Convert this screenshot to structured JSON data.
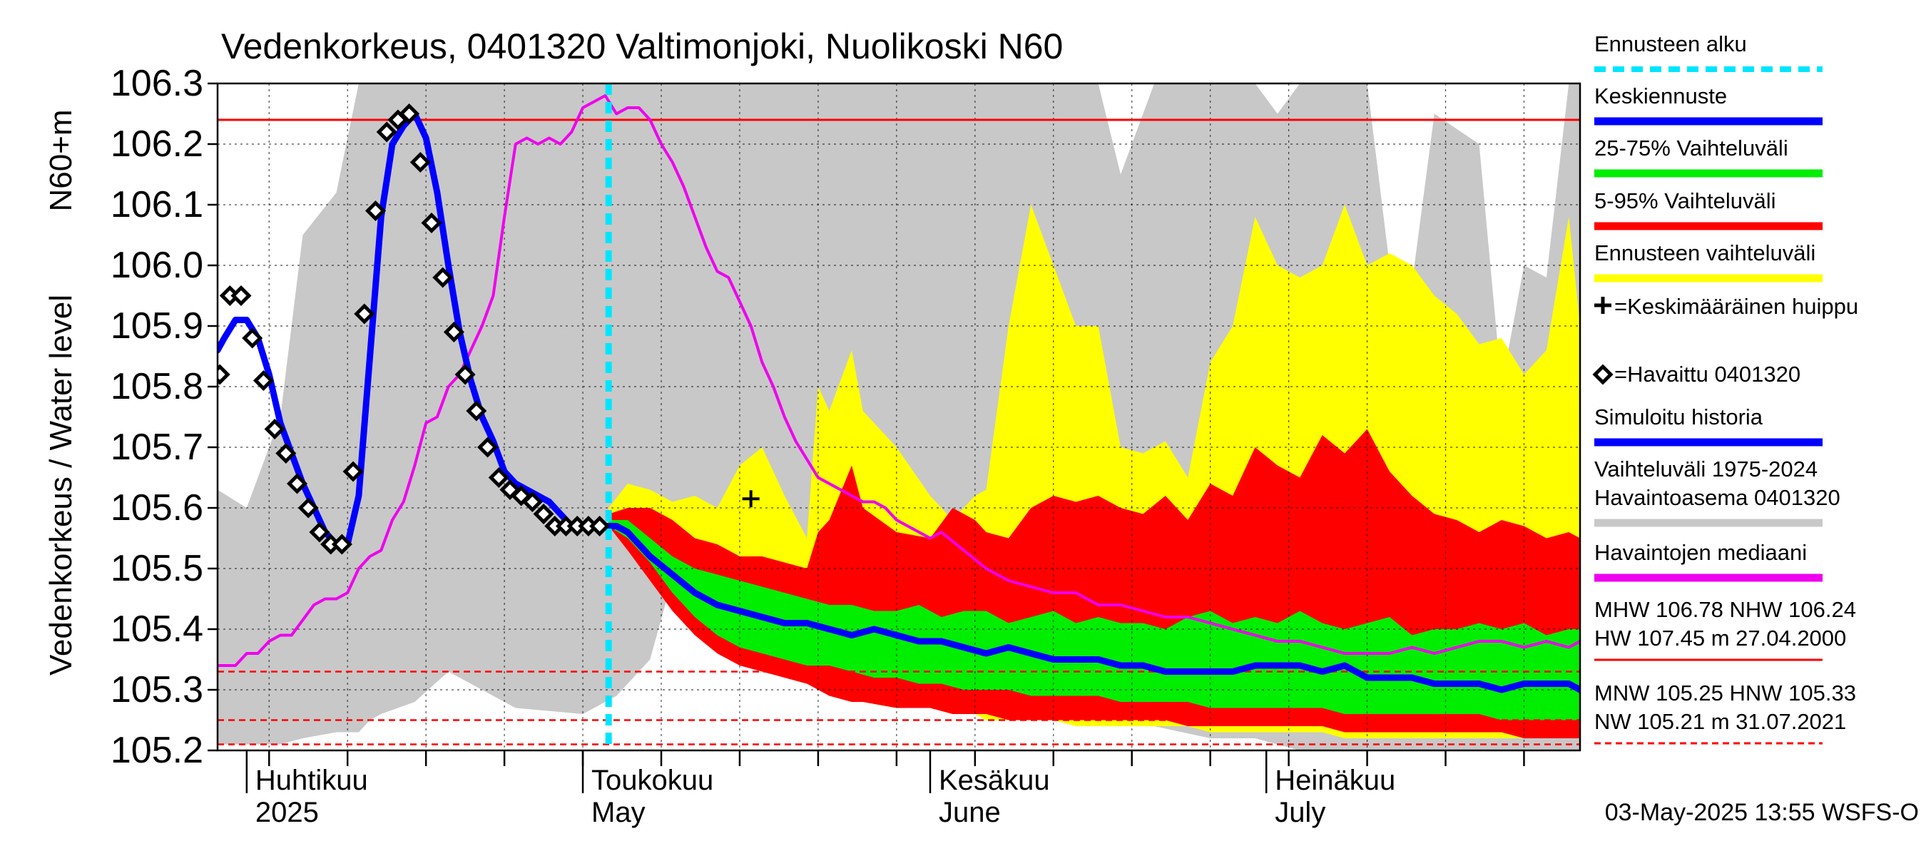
{
  "chart_data": {
    "type": "area",
    "title": "Vedenkorkeus, 0401320 Valtimonjoki, Nuolikoski N60",
    "ylabel": "Vedenkorkeus / Water level",
    "yunit": "N60+m",
    "ylim": [
      105.2,
      106.3
    ],
    "yticks": [
      "105.2",
      "105.3",
      "105.4",
      "105.5",
      "105.6",
      "105.7",
      "105.8",
      "105.9",
      "106.0",
      "106.1",
      "106.2",
      "106.3"
    ],
    "xlim_days": [
      -32.6,
      89.0
    ],
    "x_reference": "2025-05-01",
    "month_labels": [
      {
        "day": -30,
        "fi": "Huhtikuu",
        "en": "2025"
      },
      {
        "day": 0,
        "fi": "Toukokuu",
        "en": "May"
      },
      {
        "day": 31,
        "fi": "Kesäkuu",
        "en": "June"
      },
      {
        "day": 61,
        "fi": "Heinäkuu",
        "en": "July"
      }
    ],
    "forecast_start_day": 2.3,
    "reference_lines": [
      {
        "name": "NHW",
        "value": 106.24,
        "color": "#ff0000",
        "style": "solid"
      },
      {
        "name": "HNW",
        "value": 105.33,
        "color": "#ff0000",
        "style": "dashed"
      },
      {
        "name": "MNW",
        "value": 105.25,
        "color": "#ff0000",
        "style": "dashed"
      },
      {
        "name": "NW",
        "value": 105.21,
        "color": "#ff0000",
        "style": "dashed"
      }
    ],
    "mean_peak": {
      "day": 15,
      "value": 105.615
    },
    "legend": [
      {
        "label": "Ennusteen alku",
        "color": "#00e5ff",
        "style": "dotted"
      },
      {
        "label": "Keskiennuste",
        "color": "#0000ff",
        "style": "line"
      },
      {
        "label": "25-75% Vaihteluväli",
        "color": "#00ee00",
        "style": "line"
      },
      {
        "label": "5-95% Vaihteluväli",
        "color": "#ff0000",
        "style": "line"
      },
      {
        "label": "Ennusteen vaihteluväli",
        "color": "#ffff00",
        "style": "line"
      },
      {
        "label": "=Keskimääräinen huippu",
        "color": "#000000",
        "style": "plus"
      },
      {
        "label": "=Havaittu 0401320",
        "color": "#000000",
        "style": "diamond"
      },
      {
        "label": "Simuloitu historia",
        "color": "#0000ff",
        "style": "line"
      },
      {
        "label": "Vaihteluväli 1975-2024\n Havaintoasema 0401320",
        "color": "#c8c8c8",
        "style": "line"
      },
      {
        "label": "Havaintojen mediaani",
        "color": "#ee00ee",
        "style": "line"
      }
    ],
    "stats_top": "MHW 106.78 NHW 106.24\nHW 107.45 m 27.04.2000",
    "stats_bottom": "MNW 105.25 HNW 105.33\nNW 105.21 m 31.07.2021",
    "timestamp": "03-May-2025 13:55 WSFS-O",
    "series": [
      {
        "name": "Vaihteluväli 1975-2024 Havaintoasema 0401320",
        "kind": "band",
        "color": "#c8c8c8",
        "x": [
          -32.6,
          -30,
          -27,
          -25,
          -22,
          -20,
          -19,
          -18,
          -15,
          -12,
          -6,
          0,
          3,
          6,
          9,
          12,
          15,
          18,
          20,
          24,
          28,
          31,
          34,
          37,
          40,
          44,
          46,
          48,
          51,
          56,
          60,
          62,
          64,
          66,
          70,
          72,
          74,
          76,
          80,
          82,
          84,
          86,
          88,
          89
        ],
        "upper": [
          105.63,
          105.6,
          105.75,
          106.05,
          106.12,
          106.3,
          106.3,
          106.3,
          106.3,
          106.3,
          106.3,
          106.3,
          106.3,
          106.3,
          106.3,
          106.3,
          106.3,
          106.3,
          106.3,
          106.3,
          106.3,
          106.3,
          106.3,
          106.3,
          106.3,
          106.3,
          106.3,
          106.15,
          106.3,
          106.3,
          106.3,
          106.25,
          106.3,
          106.3,
          106.3,
          106.0,
          105.97,
          106.25,
          106.2,
          105.8,
          106.0,
          105.98,
          106.3,
          106.3
        ],
        "lower": [
          105.21,
          105.21,
          105.21,
          105.22,
          105.23,
          105.23,
          105.25,
          105.26,
          105.28,
          105.33,
          105.27,
          105.26,
          105.29,
          105.35,
          105.55,
          105.55,
          105.54,
          105.5,
          105.47,
          105.44,
          105.41,
          105.36,
          105.33,
          105.32,
          105.3,
          105.27,
          105.25,
          105.27,
          105.24,
          105.22,
          105.22,
          105.21,
          105.2,
          105.2,
          105.2,
          105.2,
          105.2,
          105.2,
          105.2,
          105.2,
          105.2,
          105.2,
          105.2,
          105.2
        ]
      },
      {
        "name": "Ennusteen vaihteluväli",
        "kind": "band",
        "color": "#ffff00",
        "x": [
          2.3,
          4,
          6,
          8,
          10,
          12,
          14,
          16,
          18,
          20,
          21,
          22,
          24,
          25,
          28,
          31,
          33,
          35,
          36,
          38,
          40,
          42,
          44,
          46,
          48,
          50,
          52,
          54,
          56,
          58,
          60,
          62,
          64,
          66,
          68,
          70,
          72,
          74,
          76,
          78,
          80,
          82,
          84,
          86,
          88,
          89
        ],
        "upper": [
          105.6,
          105.64,
          105.63,
          105.61,
          105.62,
          105.6,
          105.67,
          105.7,
          105.62,
          105.55,
          105.8,
          105.76,
          105.86,
          105.76,
          105.7,
          105.62,
          105.58,
          105.62,
          105.63,
          105.9,
          106.1,
          106.0,
          105.9,
          105.9,
          105.7,
          105.69,
          105.71,
          105.65,
          105.84,
          105.9,
          106.08,
          106.0,
          105.98,
          106.0,
          106.1,
          106.0,
          106.02,
          106.0,
          105.95,
          105.92,
          105.87,
          105.88,
          105.82,
          105.86,
          106.08,
          105.9
        ],
        "lower": [
          105.57,
          105.55,
          105.49,
          105.44,
          105.4,
          105.37,
          105.35,
          105.34,
          105.33,
          105.32,
          105.31,
          105.3,
          105.29,
          105.28,
          105.27,
          105.27,
          105.26,
          105.26,
          105.25,
          105.25,
          105.25,
          105.25,
          105.24,
          105.24,
          105.24,
          105.24,
          105.24,
          105.24,
          105.23,
          105.23,
          105.23,
          105.23,
          105.23,
          105.23,
          105.22,
          105.22,
          105.22,
          105.22,
          105.22,
          105.22,
          105.22,
          105.22,
          105.22,
          105.22,
          105.22,
          105.22
        ]
      },
      {
        "name": "5-95% Vaihteluväli",
        "kind": "band",
        "color": "#ff0000",
        "x": [
          2.3,
          4,
          6,
          8,
          10,
          12,
          14,
          16,
          18,
          20,
          21,
          22,
          24,
          25,
          28,
          31,
          33,
          35,
          36,
          38,
          40,
          42,
          44,
          46,
          48,
          50,
          52,
          54,
          56,
          58,
          60,
          62,
          64,
          66,
          68,
          70,
          72,
          74,
          76,
          78,
          80,
          82,
          84,
          86,
          88,
          89
        ],
        "upper": [
          105.59,
          105.6,
          105.6,
          105.58,
          105.55,
          105.54,
          105.52,
          105.52,
          105.51,
          105.5,
          105.56,
          105.58,
          105.67,
          105.6,
          105.56,
          105.55,
          105.6,
          105.58,
          105.56,
          105.55,
          105.6,
          105.62,
          105.61,
          105.62,
          105.6,
          105.59,
          105.62,
          105.58,
          105.64,
          105.62,
          105.7,
          105.67,
          105.65,
          105.72,
          105.69,
          105.73,
          105.66,
          105.62,
          105.59,
          105.58,
          105.56,
          105.58,
          105.57,
          105.55,
          105.56,
          105.55
        ],
        "lower": [
          105.57,
          105.53,
          105.48,
          105.43,
          105.39,
          105.36,
          105.34,
          105.33,
          105.32,
          105.31,
          105.3,
          105.29,
          105.28,
          105.28,
          105.27,
          105.27,
          105.26,
          105.26,
          105.26,
          105.25,
          105.25,
          105.25,
          105.25,
          105.25,
          105.25,
          105.25,
          105.25,
          105.24,
          105.24,
          105.24,
          105.24,
          105.24,
          105.24,
          105.24,
          105.23,
          105.23,
          105.23,
          105.23,
          105.23,
          105.23,
          105.23,
          105.23,
          105.22,
          105.22,
          105.22,
          105.22
        ]
      },
      {
        "name": "25-75% Vaihteluväli",
        "kind": "band",
        "color": "#00ee00",
        "x": [
          2.3,
          4,
          6,
          8,
          10,
          12,
          14,
          16,
          18,
          20,
          22,
          24,
          26,
          28,
          30,
          32,
          34,
          36,
          38,
          40,
          42,
          44,
          46,
          48,
          50,
          52,
          54,
          56,
          58,
          60,
          62,
          64,
          66,
          68,
          70,
          72,
          74,
          76,
          78,
          80,
          82,
          84,
          86,
          88,
          89
        ],
        "upper": [
          105.58,
          105.58,
          105.55,
          105.52,
          105.5,
          105.49,
          105.48,
          105.47,
          105.46,
          105.45,
          105.44,
          105.44,
          105.43,
          105.43,
          105.44,
          105.42,
          105.43,
          105.43,
          105.41,
          105.42,
          105.43,
          105.41,
          105.42,
          105.41,
          105.41,
          105.4,
          105.42,
          105.43,
          105.41,
          105.42,
          105.41,
          105.43,
          105.41,
          105.4,
          105.41,
          105.42,
          105.39,
          105.4,
          105.4,
          105.41,
          105.4,
          105.41,
          105.39,
          105.4,
          105.4
        ],
        "lower": [
          105.57,
          105.55,
          105.51,
          105.46,
          105.42,
          105.39,
          105.37,
          105.36,
          105.35,
          105.34,
          105.34,
          105.33,
          105.32,
          105.32,
          105.31,
          105.31,
          105.3,
          105.3,
          105.3,
          105.29,
          105.29,
          105.29,
          105.29,
          105.28,
          105.28,
          105.28,
          105.28,
          105.27,
          105.27,
          105.27,
          105.27,
          105.27,
          105.27,
          105.26,
          105.26,
          105.26,
          105.26,
          105.26,
          105.26,
          105.26,
          105.25,
          105.25,
          105.25,
          105.25,
          105.25
        ]
      },
      {
        "name": "Havaintojen mediaani",
        "kind": "line",
        "color": "#ee00ee",
        "x": [
          -32.6,
          -31,
          -30,
          -29,
          -28,
          -27,
          -26,
          -24,
          -23,
          -22,
          -21,
          -20,
          -19,
          -18,
          -17,
          -16,
          -15,
          -14,
          -13,
          -12,
          -11,
          -10,
          -9,
          -8,
          -7,
          -6,
          -5,
          -4,
          -3,
          -2,
          -1,
          0,
          1,
          2,
          3,
          4,
          5,
          6,
          7,
          8,
          9,
          10,
          11,
          12,
          13,
          14,
          15,
          16,
          17,
          18,
          19,
          20,
          21,
          22,
          23,
          24,
          25,
          26,
          27,
          28,
          29,
          30,
          31,
          32,
          34,
          36,
          38,
          40,
          42,
          44,
          46,
          48,
          50,
          52,
          54,
          56,
          58,
          60,
          62,
          64,
          66,
          68,
          70,
          72,
          74,
          76,
          78,
          80,
          82,
          84,
          86,
          88,
          89
        ],
        "values": [
          105.34,
          105.34,
          105.36,
          105.36,
          105.38,
          105.39,
          105.39,
          105.44,
          105.45,
          105.45,
          105.46,
          105.5,
          105.52,
          105.53,
          105.58,
          105.61,
          105.67,
          105.74,
          105.75,
          105.8,
          105.82,
          105.86,
          105.9,
          105.95,
          106.08,
          106.2,
          106.21,
          106.2,
          106.21,
          106.2,
          106.22,
          106.26,
          106.27,
          106.28,
          106.25,
          106.26,
          106.26,
          106.24,
          106.2,
          106.17,
          106.13,
          106.08,
          106.03,
          105.99,
          105.98,
          105.94,
          105.9,
          105.84,
          105.8,
          105.75,
          105.71,
          105.68,
          105.65,
          105.64,
          105.63,
          105.62,
          105.61,
          105.61,
          105.6,
          105.58,
          105.57,
          105.56,
          105.55,
          105.56,
          105.53,
          105.5,
          105.48,
          105.47,
          105.46,
          105.46,
          105.44,
          105.44,
          105.43,
          105.42,
          105.42,
          105.41,
          105.4,
          105.39,
          105.38,
          105.38,
          105.37,
          105.36,
          105.36,
          105.36,
          105.37,
          105.36,
          105.37,
          105.38,
          105.38,
          105.37,
          105.38,
          105.37,
          105.38
        ]
      },
      {
        "name": "Simuloitu historia / Keskiennuste",
        "kind": "line",
        "color": "#0000ff",
        "x": [
          -32.6,
          -32,
          -31,
          -30,
          -29,
          -28,
          -27,
          -26,
          -25,
          -24,
          -23,
          -22,
          -21,
          -20,
          -19,
          -18,
          -17,
          -16,
          -15,
          -14,
          -13,
          -12,
          -11,
          -10,
          -9,
          -8,
          -7,
          -6,
          -5,
          -4,
          -3,
          -2,
          -1,
          0,
          1,
          2,
          2.3,
          3,
          4,
          5,
          6,
          8,
          10,
          12,
          14,
          16,
          18,
          20,
          22,
          24,
          26,
          28,
          30,
          32,
          34,
          36,
          38,
          40,
          42,
          44,
          46,
          48,
          50,
          52,
          54,
          56,
          58,
          60,
          62,
          64,
          66,
          68,
          70,
          72,
          74,
          76,
          78,
          80,
          82,
          84,
          86,
          88,
          89
        ],
        "values": [
          105.86,
          105.88,
          105.91,
          105.91,
          105.88,
          105.82,
          105.74,
          105.69,
          105.64,
          105.6,
          105.56,
          105.54,
          105.54,
          105.62,
          105.85,
          106.08,
          106.2,
          106.23,
          106.25,
          106.21,
          106.12,
          106.0,
          105.89,
          105.81,
          105.75,
          105.71,
          105.66,
          105.64,
          105.63,
          105.62,
          105.61,
          105.59,
          105.57,
          105.57,
          105.57,
          105.57,
          105.57,
          105.57,
          105.56,
          105.54,
          105.52,
          105.49,
          105.46,
          105.44,
          105.43,
          105.42,
          105.41,
          105.41,
          105.4,
          105.39,
          105.4,
          105.39,
          105.38,
          105.38,
          105.37,
          105.36,
          105.37,
          105.36,
          105.35,
          105.35,
          105.35,
          105.34,
          105.34,
          105.33,
          105.33,
          105.33,
          105.33,
          105.34,
          105.34,
          105.34,
          105.33,
          105.34,
          105.32,
          105.32,
          105.32,
          105.31,
          105.31,
          105.31,
          105.3,
          105.31,
          105.31,
          105.31,
          105.3
        ]
      },
      {
        "name": "Havaittu 0401320",
        "kind": "points",
        "color": "#000000",
        "x": [
          -32.4,
          -31.5,
          -30.5,
          -29.5,
          -28.5,
          -27.5,
          -26.5,
          -25.5,
          -24.5,
          -23.5,
          -22.5,
          -21.5,
          -20.5,
          -19.5,
          -18.5,
          -17.5,
          -16.5,
          -15.5,
          -14.5,
          -13.5,
          -12.5,
          -11.5,
          -10.5,
          -9.5,
          -8.5,
          -7.5,
          -6.5,
          -5.5,
          -4.5,
          -3.5,
          -2.5,
          -1.5,
          -0.5,
          0.5,
          1.5
        ],
        "values": [
          105.82,
          105.95,
          105.95,
          105.88,
          105.81,
          105.73,
          105.69,
          105.64,
          105.6,
          105.56,
          105.54,
          105.54,
          105.66,
          105.92,
          106.09,
          106.22,
          106.24,
          106.25,
          106.17,
          106.07,
          105.98,
          105.89,
          105.82,
          105.76,
          105.7,
          105.65,
          105.63,
          105.62,
          105.61,
          105.59,
          105.57,
          105.57,
          105.57,
          105.57,
          105.57
        ]
      }
    ]
  }
}
